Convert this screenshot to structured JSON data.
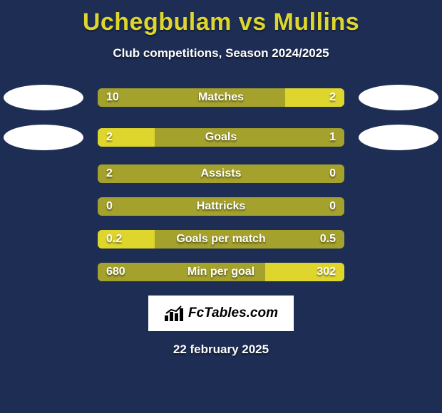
{
  "title": "Uchegbulam vs Mullins",
  "subtitle": "Club competitions, Season 2024/2025",
  "footer": {
    "brand": "FcTables.com",
    "date": "22 february 2025"
  },
  "colors": {
    "background": "#1d2d54",
    "title": "#ded62c",
    "bar_base": "#a4a12d",
    "bar_highlight": "#ded62c",
    "ellipse": "#ffffff",
    "text": "#ffffff"
  },
  "stats": [
    {
      "label": "Matches",
      "left_value": "10",
      "right_value": "2",
      "left_pct": 76,
      "right_pct": 24,
      "highlight": "right",
      "show_ellipses": true
    },
    {
      "label": "Goals",
      "left_value": "2",
      "right_value": "1",
      "left_pct": 23,
      "right_pct": 77,
      "highlight": "left",
      "show_ellipses": true
    },
    {
      "label": "Assists",
      "left_value": "2",
      "right_value": "0",
      "left_pct": 77,
      "right_pct": 0,
      "highlight": "right",
      "show_ellipses": false
    },
    {
      "label": "Hattricks",
      "left_value": "0",
      "right_value": "0",
      "left_pct": 0,
      "right_pct": 0,
      "highlight": "none",
      "show_ellipses": false
    },
    {
      "label": "Goals per match",
      "left_value": "0.2",
      "right_value": "0.5",
      "left_pct": 23,
      "right_pct": 0,
      "highlight": "left",
      "show_ellipses": false
    },
    {
      "label": "Min per goal",
      "left_value": "680",
      "right_value": "302",
      "left_pct": 68,
      "right_pct": 32,
      "highlight": "right",
      "show_ellipses": false
    }
  ]
}
